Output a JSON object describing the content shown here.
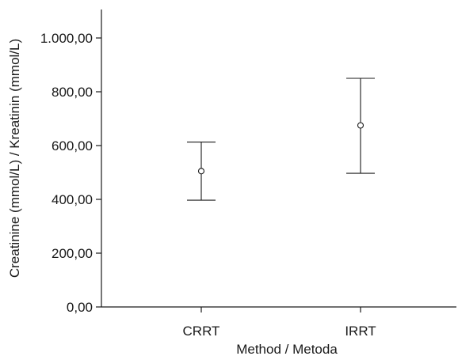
{
  "chart_data": {
    "type": "scatter",
    "title": "",
    "xlabel": "Method / Metoda",
    "ylabel": "Creatinine (mmol/L) / Kreatinin (mmol/L)",
    "categories": [
      "CRRT",
      "IRRT"
    ],
    "series": [
      {
        "values": [
          505,
          675
        ],
        "lower": [
          397,
          497
        ],
        "upper": [
          613,
          850
        ]
      }
    ],
    "ylim": [
      0,
      1100
    ],
    "yticks": [
      0,
      200,
      400,
      600,
      800,
      1000
    ],
    "ytick_labels": [
      "0,00",
      "200,00",
      "400,00",
      "600,00",
      "800,00",
      "1.000,00"
    ],
    "grid": false,
    "legend": "none",
    "colors": {
      "ink": "#1a1a1a",
      "background": "#ffffff"
    }
  }
}
